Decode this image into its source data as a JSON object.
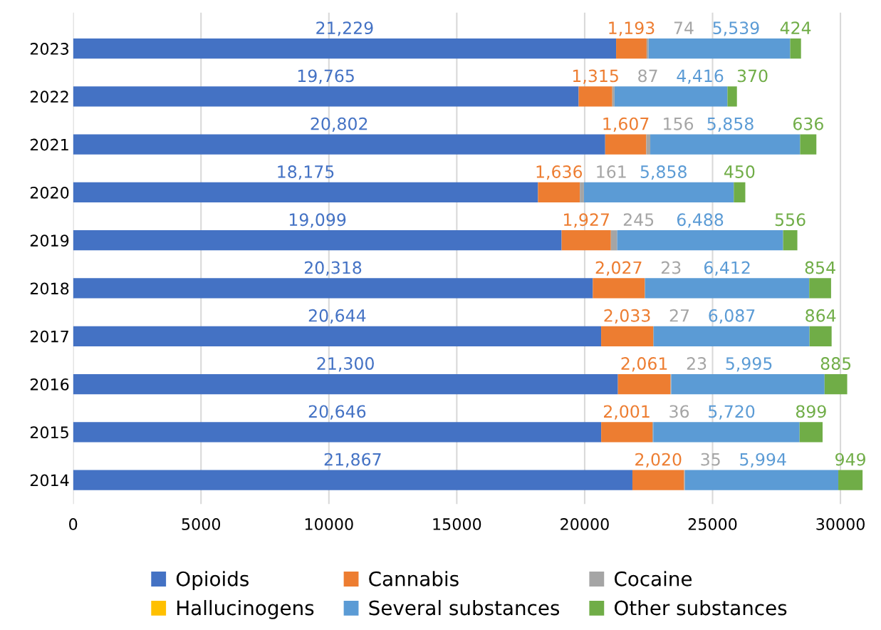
{
  "chart_data": {
    "type": "bar",
    "orientation": "horizontal",
    "stacked": true,
    "categories": [
      "2023",
      "2022",
      "2021",
      "2020",
      "2019",
      "2018",
      "2017",
      "2016",
      "2015",
      "2014"
    ],
    "series": [
      {
        "name": "Opioids",
        "color": "#4472c4",
        "values": [
          21229,
          19765,
          20802,
          18175,
          19099,
          20318,
          20644,
          21300,
          20646,
          21867
        ],
        "value_labels": [
          "21,229",
          "19,765",
          "20,802",
          "18,175",
          "19,099",
          "20,318",
          "20,644",
          "21,300",
          "20,646",
          "21,867"
        ]
      },
      {
        "name": "Cannabis",
        "color": "#ed7d31",
        "values": [
          1193,
          1315,
          1607,
          1636,
          1927,
          2027,
          2033,
          2061,
          2001,
          2020
        ],
        "value_labels": [
          "1,193",
          "1,315",
          "1,607",
          "1,636",
          "1,927",
          "2,027",
          "2,033",
          "2,061",
          "2,001",
          "2,020"
        ]
      },
      {
        "name": "Cocaine",
        "color": "#a5a5a5",
        "values": [
          74,
          87,
          156,
          161,
          245,
          23,
          27,
          23,
          36,
          35
        ],
        "value_labels": [
          "74",
          "87",
          "156",
          "161",
          "245",
          "23",
          "27",
          "23",
          "36",
          "35"
        ]
      },
      {
        "name": "Hallucinogens",
        "color": "#ffc000",
        "values": [
          null,
          null,
          null,
          null,
          null,
          null,
          null,
          null,
          null,
          null
        ]
      },
      {
        "name": "Several substances",
        "color": "#5b9bd5",
        "values": [
          5539,
          4416,
          5858,
          5858,
          6488,
          6412,
          6087,
          5995,
          5720,
          5994
        ],
        "value_labels": [
          "5,539",
          "4,416",
          "5,858",
          "5,858",
          "6,488",
          "6,412",
          "6,087",
          "5,995",
          "5,720",
          "5,994"
        ]
      },
      {
        "name": "Other substances",
        "color": "#70ad47",
        "values": [
          424,
          370,
          636,
          450,
          556,
          854,
          864,
          885,
          899,
          949
        ],
        "value_labels": [
          "424",
          "370",
          "636",
          "450",
          "556",
          "854",
          "864",
          "885",
          "899",
          "949"
        ]
      }
    ],
    "xlim": [
      0,
      31000
    ],
    "xticks": [
      0,
      5000,
      10000,
      15000,
      20000,
      25000,
      30000
    ],
    "grid": "x",
    "legend": "bottom"
  }
}
